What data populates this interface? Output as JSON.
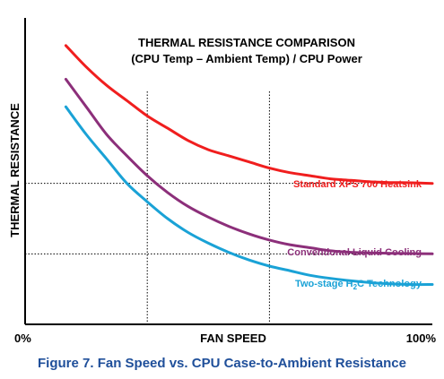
{
  "caption": "Figure 7. Fan Speed vs. CPU Case-to-Ambient Resistance",
  "chart_data": {
    "type": "line",
    "title": "THERMAL RESISTANCE COMPARISON",
    "subtitle": "(CPU Temp – Ambient Temp) / CPU Power",
    "xlabel": "FAN SPEED",
    "ylabel": "THERMAL RESISTANCE",
    "x_tick_labels": [
      "0%",
      "100%"
    ],
    "xlim": [
      0,
      100
    ],
    "ylim": [
      0,
      100
    ],
    "grid": false,
    "legend": "inline labels at right end of each curve",
    "x": [
      10,
      15,
      20,
      25,
      30,
      35,
      40,
      45,
      50,
      55,
      60,
      65,
      70,
      75,
      80,
      85,
      90,
      95,
      100
    ],
    "series": [
      {
        "name": "Standard XPS 700 Heatsink",
        "color": "#f01e1e",
        "values": [
          91,
          84,
          78,
          73,
          68,
          64,
          60,
          57,
          55,
          53,
          51,
          49.5,
          48.5,
          47.5,
          47,
          46.5,
          46.3,
          46.2,
          46
        ]
      },
      {
        "name": "Conventional Liquid Cooling",
        "color": "#8c2f7a",
        "values": [
          80,
          71,
          62,
          55,
          48.5,
          43,
          38.5,
          35,
          32,
          29.5,
          27.5,
          26,
          25,
          24,
          23.5,
          23.3,
          23.2,
          23.1,
          23
        ]
      },
      {
        "name": "Two-stage H2C Technology",
        "color": "#1aa2d6",
        "values": [
          71,
          62,
          54,
          46,
          40,
          34.5,
          30,
          26.5,
          23.5,
          21,
          19,
          17.5,
          16,
          15,
          14.2,
          13.6,
          13.2,
          13,
          13
        ]
      }
    ],
    "reference_lines": {
      "vertical_x": [
        30,
        60
      ],
      "horizontal_y": [
        46,
        23
      ]
    }
  }
}
